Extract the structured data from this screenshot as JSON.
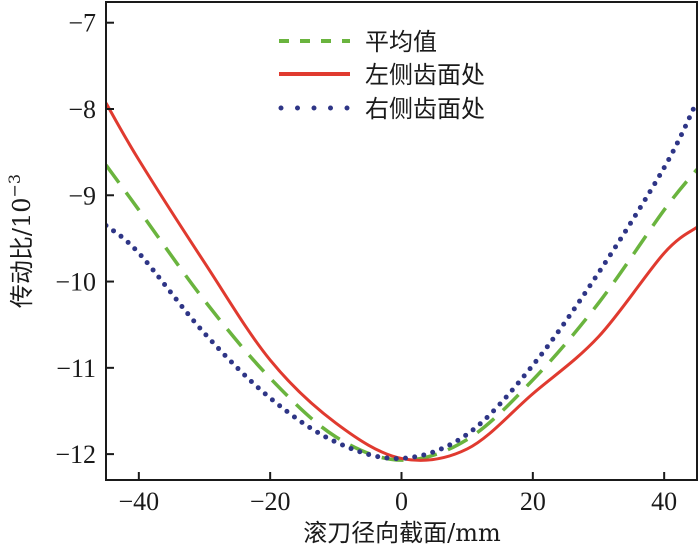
{
  "chart_data": {
    "type": "line",
    "title": "",
    "xlabel": "滚刀径向截面/mm",
    "ylabel": "传动比/10",
    "ylabel_exponent": "−3",
    "xlim": [
      -45,
      45
    ],
    "ylim": [
      -12.3,
      -6.76
    ],
    "xticks": [
      -40,
      -20,
      0,
      20,
      40
    ],
    "xtick_labels": [
      "−40",
      "−20",
      "0",
      "20",
      "40"
    ],
    "yticks": [
      -7,
      -8,
      -9,
      -10,
      -11,
      -12
    ],
    "ytick_labels": [
      "−7",
      "−8",
      "−9",
      "−10",
      "−11",
      "−12"
    ],
    "grid": false,
    "legend_position": "top-center",
    "x": [
      -45,
      -40,
      -30,
      -20,
      -10,
      0,
      10,
      20,
      30,
      40,
      45
    ],
    "series": [
      {
        "name": "平均值",
        "style": "dashed",
        "color": "#6ab43e",
        "values": [
          -8.65,
          -9.17,
          -10.22,
          -11.12,
          -11.8,
          -12.07,
          -11.83,
          -11.14,
          -10.25,
          -9.17,
          -8.7
        ]
      },
      {
        "name": "左侧齿面处",
        "style": "solid",
        "color": "#e03a2f",
        "values": [
          -7.93,
          -8.59,
          -9.78,
          -10.91,
          -11.64,
          -12.05,
          -11.94,
          -11.3,
          -10.64,
          -9.67,
          -9.37
        ]
      },
      {
        "name": "右侧齿面处",
        "style": "dotted",
        "color": "#2e3586",
        "values": [
          -9.35,
          -9.67,
          -10.6,
          -11.35,
          -11.86,
          -12.05,
          -11.77,
          -10.97,
          -9.9,
          -8.68,
          -7.91
        ]
      }
    ]
  }
}
